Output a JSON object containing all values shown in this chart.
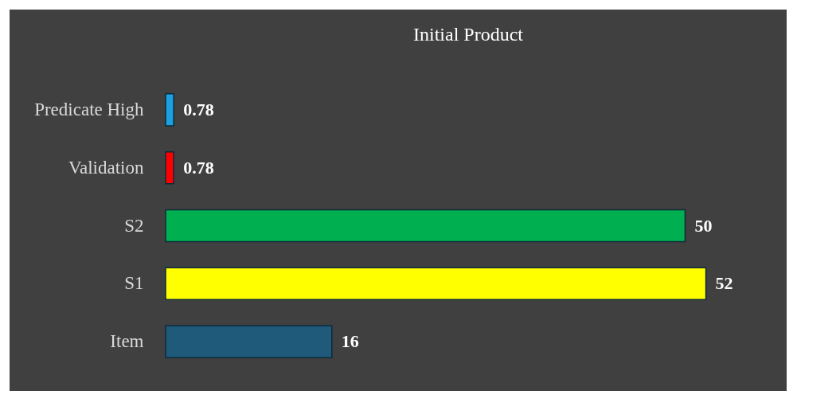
{
  "chart_data": {
    "type": "bar",
    "orientation": "horizontal",
    "title": "Initial Product",
    "categories": [
      "Predicate High",
      "Validation",
      "S2",
      "S1",
      "Item"
    ],
    "values": [
      0.78,
      0.78,
      50,
      52,
      16
    ],
    "colors": [
      "#1ba1e2",
      "#ff0000",
      "#00b050",
      "#ffff00",
      "#1f5a7a"
    ],
    "data_labels": true,
    "tick_labels": "y"
  }
}
